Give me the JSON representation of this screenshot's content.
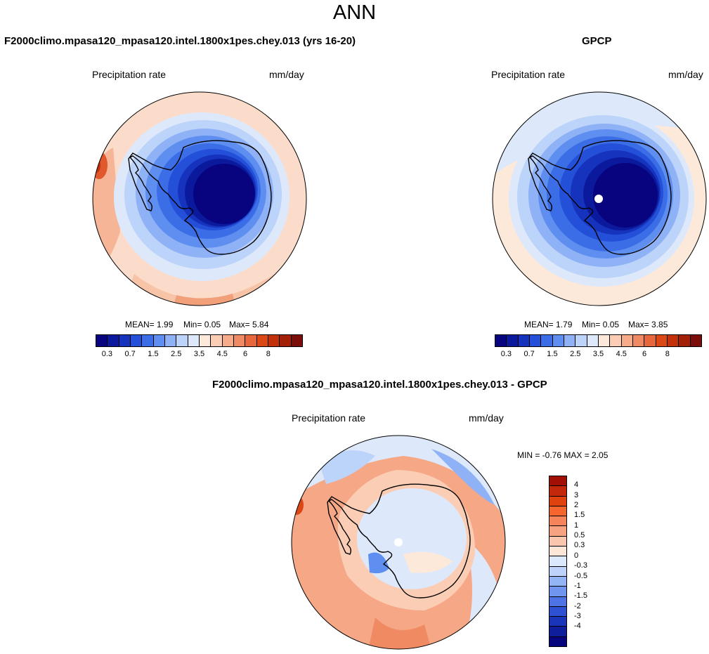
{
  "season": "ANN",
  "panels": {
    "model": {
      "title": "F2000climo.mpasa120_mpasa120.intel.1800x1pes.chey.013 (yrs 16-20)",
      "var_label": "Precipitation rate",
      "units": "mm/day",
      "mean_label": "MEAN=",
      "mean_value": "1.99",
      "min_label": "Min=",
      "min_value": "0.05",
      "max_label": "Max=",
      "max_value": "5.84"
    },
    "obs": {
      "title": "GPCP",
      "var_label": "Precipitation rate",
      "units": "mm/day",
      "mean_label": "MEAN=",
      "mean_value": "1.79",
      "min_label": "Min=",
      "min_value": "0.05",
      "max_label": "Max=",
      "max_value": "3.85"
    },
    "diff": {
      "title": "F2000climo.mpasa120_mpasa120.intel.1800x1pes.chey.013 - GPCP",
      "var_label": "Precipitation rate",
      "units": "mm/day",
      "minmax_text": "MIN =  -0.76 MAX =   2.05"
    }
  },
  "colorbars": {
    "precip": {
      "colors": [
        "#08037f",
        "#0b1a9c",
        "#1633bd",
        "#2450d9",
        "#3b6ee6",
        "#5e8ff0",
        "#8fb1f5",
        "#bcd3fa",
        "#dde9fb",
        "#fde9d9",
        "#fbcdb4",
        "#f6ab89",
        "#f08a62",
        "#e8663b",
        "#dc4716",
        "#c2300c",
        "#a21f08",
        "#7b0d0a"
      ],
      "tick_labels": [
        "0.3",
        "0.7",
        "1.5",
        "2.5",
        "3.5",
        "4.5",
        "6",
        "8"
      ]
    },
    "diff": {
      "colors_top_to_bottom": [
        "#a21005",
        "#c3280b",
        "#e0420f",
        "#f5652d",
        "#f6845b",
        "#f7a380",
        "#fac6ad",
        "#fde6d7",
        "#dce8fb",
        "#bdd3fa",
        "#94b5f5",
        "#6f95ee",
        "#4d73e5",
        "#2e51d3",
        "#1a35ba",
        "#0f1f9c",
        "#06057e"
      ],
      "tick_labels": [
        "4",
        "3",
        "2",
        "1.5",
        "1",
        "0.5",
        "0.3",
        "0",
        "-0.3",
        "-0.5",
        "-1",
        "-1.5",
        "-2",
        "-3",
        "-4"
      ]
    }
  }
}
